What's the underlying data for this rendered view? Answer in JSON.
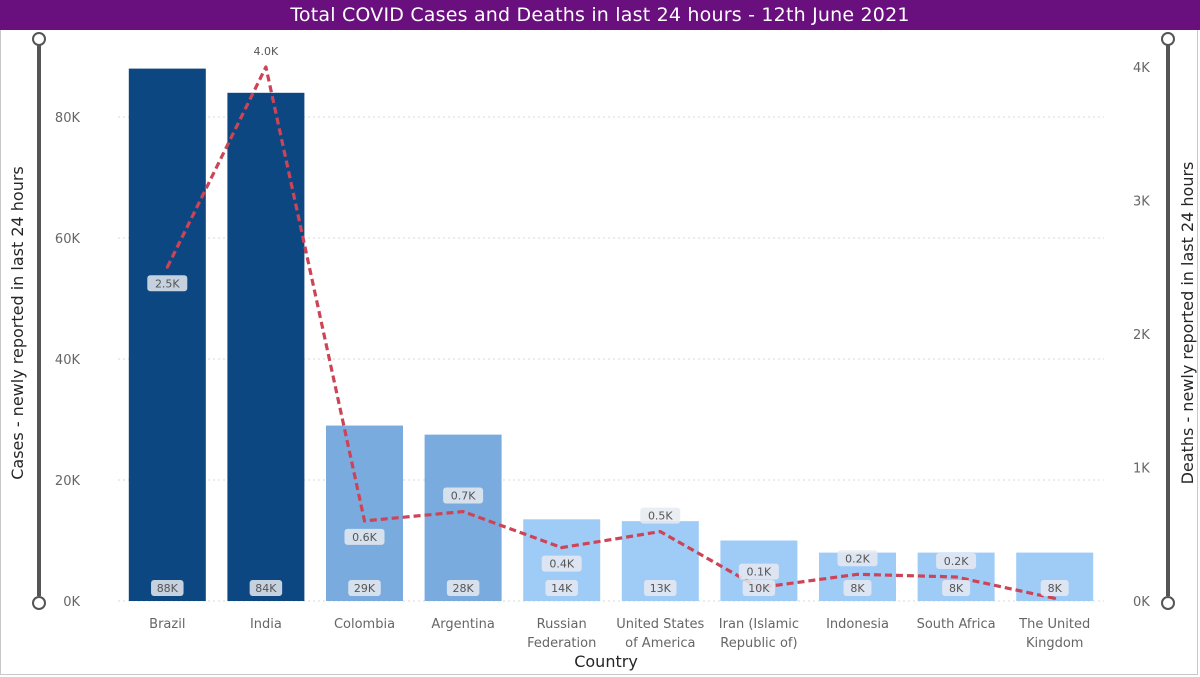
{
  "title": "Total COVID Cases and Deaths in last 24 hours - 12th June 2021",
  "colors": {
    "title_bg": "#6a0f7e",
    "bar_dark": "#0d4782",
    "bar_mid": "#7aabdf",
    "bar_light": "#9fcbf7",
    "line": "#cc4455",
    "label_bg": "#e6eaf0"
  },
  "chart_data": {
    "type": "bar",
    "title": "Total COVID Cases and Deaths in last 24 hours - 12th June 2021",
    "xlabel": "Country",
    "ylabel": "Cases - newly reported in last 24 hours",
    "y2label": "Deaths - newly reported in last 24 hours",
    "ylim": [
      0,
      88000
    ],
    "y2lim": [
      0,
      4000
    ],
    "yticks": [
      "0K",
      "20K",
      "40K",
      "60K",
      "80K"
    ],
    "yticks_values": [
      0,
      20000,
      40000,
      60000,
      80000
    ],
    "y2ticks": [
      "0K",
      "1K",
      "2K",
      "3K",
      "4K"
    ],
    "y2ticks_values": [
      0,
      1000,
      2000,
      3000,
      4000
    ],
    "grid": true,
    "categories": [
      "Brazil",
      "India",
      "Colombia",
      "Argentina",
      "Russian Federation",
      "United States of America",
      "Iran (Islamic Republic of)",
      "Indonesia",
      "South Africa",
      "The United Kingdom"
    ],
    "category_lines": [
      [
        "Brazil"
      ],
      [
        "India"
      ],
      [
        "Colombia"
      ],
      [
        "Argentina"
      ],
      [
        "Russian",
        "Federation"
      ],
      [
        "United States",
        "of America"
      ],
      [
        "Iran (Islamic",
        "Republic of)"
      ],
      [
        "Indonesia"
      ],
      [
        "South Africa"
      ],
      [
        "The United",
        "Kingdom"
      ]
    ],
    "series": [
      {
        "name": "Cases - newly reported in last 24 hours",
        "type": "bar",
        "axis": "left",
        "values": [
          88000,
          84000,
          29000,
          27500,
          13500,
          13200,
          10000,
          8000,
          8000,
          8000
        ],
        "labels": [
          "88K",
          "84K",
          "29K",
          "28K",
          "14K",
          "13K",
          "10K",
          "8K",
          "8K",
          "8K"
        ],
        "shade": [
          "dark",
          "dark",
          "mid",
          "mid",
          "light",
          "light",
          "light",
          "light",
          "light",
          "light"
        ]
      },
      {
        "name": "Deaths - newly reported in last 24 hours",
        "type": "line",
        "style": "dashed",
        "axis": "right",
        "values": [
          2500,
          4000,
          600,
          670,
          400,
          520,
          100,
          200,
          180,
          20
        ],
        "labels": [
          "2.5K",
          "4.0K",
          "0.6K",
          "0.7K",
          "0.4K",
          "0.5K",
          "0.1K",
          "0.2K",
          "0.2K",
          ""
        ]
      }
    ]
  }
}
